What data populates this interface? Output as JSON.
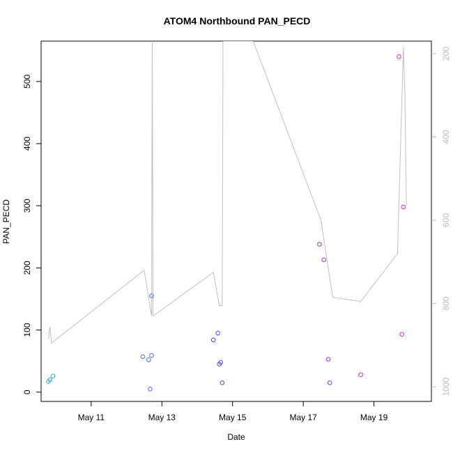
{
  "chart_data": {
    "type": "scatter",
    "title": "ATOM4 Northbound PAN_PECD",
    "xlabel": "Date",
    "ylabel": "PAN_PECD",
    "xlim": [
      "2024-05-09 14:00",
      "2024-05-20 15:00"
    ],
    "ylim": [
      -15,
      565
    ],
    "x_ticks": [
      {
        "value": "2024-05-11 00:00",
        "label": "May 11"
      },
      {
        "value": "2024-05-13 00:00",
        "label": "May 13"
      },
      {
        "value": "2024-05-15 00:00",
        "label": "May 15"
      },
      {
        "value": "2024-05-17 00:00",
        "label": "May 17"
      },
      {
        "value": "2024-05-19 00:00",
        "label": "May 19"
      }
    ],
    "y_ticks": [
      0,
      100,
      200,
      300,
      400,
      500
    ],
    "right_axis": {
      "reversed": true,
      "ylim": [
        170,
        1035
      ],
      "ticks": [
        200,
        400,
        600,
        800,
        1000
      ],
      "color": "#bbbbbb"
    },
    "line_series": {
      "color": "#c0c0c0",
      "points": [
        {
          "x": "2024-05-09 19:00",
          "y": 885
        },
        {
          "x": "2024-05-09 20:00",
          "y": 855
        },
        {
          "x": "2024-05-09 21:00",
          "y": 895
        },
        {
          "x": "2024-05-12 12:00",
          "y": 720
        },
        {
          "x": "2024-05-12 17:00",
          "y": 830
        },
        {
          "x": "2024-05-12 17:30",
          "y": 170
        },
        {
          "x": "2024-05-12 18:00",
          "y": 830
        },
        {
          "x": "2024-05-14 11:00",
          "y": 725
        },
        {
          "x": "2024-05-14 15:00",
          "y": 805
        },
        {
          "x": "2024-05-14 17:00",
          "y": 805
        },
        {
          "x": "2024-05-14 17:30",
          "y": 170
        },
        {
          "x": "2024-05-15 14:00",
          "y": 170
        },
        {
          "x": "2024-05-17 12:00",
          "y": 600
        },
        {
          "x": "2024-05-17 20:00",
          "y": 785
        },
        {
          "x": "2024-05-18 15:00",
          "y": 795
        },
        {
          "x": "2024-05-19 16:00",
          "y": 680
        },
        {
          "x": "2024-05-19 20:00",
          "y": 185
        },
        {
          "x": "2024-05-19 21:00",
          "y": 300
        },
        {
          "x": "2024-05-19 22:00",
          "y": 565
        }
      ]
    },
    "points": [
      {
        "x": "2024-05-09 19:00",
        "y": 17,
        "color": "#33aadd"
      },
      {
        "x": "2024-05-09 20:00",
        "y": 20,
        "color": "#33aadd"
      },
      {
        "x": "2024-05-09 22:00",
        "y": 26,
        "color": "#33aadd"
      },
      {
        "x": "2024-05-12 11:00",
        "y": 57,
        "color": "#4a6ef0"
      },
      {
        "x": "2024-05-12 15:00",
        "y": 52,
        "color": "#4a6ef0"
      },
      {
        "x": "2024-05-12 16:00",
        "y": 5,
        "color": "#4a6ef0"
      },
      {
        "x": "2024-05-12 17:00",
        "y": 59,
        "color": "#4a6ef0"
      },
      {
        "x": "2024-05-12 17:00",
        "y": 155,
        "color": "#4a6ef0"
      },
      {
        "x": "2024-05-14 11:00",
        "y": 84,
        "color": "#5a3af0"
      },
      {
        "x": "2024-05-14 14:00",
        "y": 95,
        "color": "#5a3af0"
      },
      {
        "x": "2024-05-14 15:00",
        "y": 45,
        "color": "#5a3af0"
      },
      {
        "x": "2024-05-14 16:00",
        "y": 48,
        "color": "#5a3af0"
      },
      {
        "x": "2024-05-14 17:00",
        "y": 15,
        "color": "#5a3af0"
      },
      {
        "x": "2024-05-17 11:00",
        "y": 238,
        "color": "#9a2ee0"
      },
      {
        "x": "2024-05-17 14:00",
        "y": 213,
        "color": "#9a2ee0"
      },
      {
        "x": "2024-05-17 17:00",
        "y": 53,
        "color": "#9a2ee0"
      },
      {
        "x": "2024-05-17 18:00",
        "y": 15,
        "color": "#9a2ee0"
      },
      {
        "x": "2024-05-18 15:00",
        "y": 28,
        "color": "#cc2ed0"
      },
      {
        "x": "2024-05-19 17:00",
        "y": 540,
        "color": "#dd22cc"
      },
      {
        "x": "2024-05-19 19:00",
        "y": 93,
        "color": "#dd22cc"
      },
      {
        "x": "2024-05-19 20:00",
        "y": 298,
        "color": "#dd22cc"
      }
    ],
    "grid": false,
    "legend": "none"
  }
}
